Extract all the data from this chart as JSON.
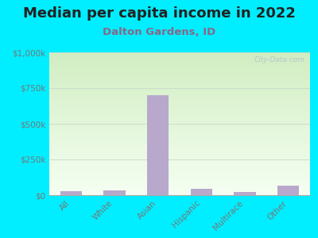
{
  "title": "Median per capita income in 2022",
  "subtitle": "Dalton Gardens, ID",
  "categories": [
    "All",
    "White",
    "Asian",
    "Hispanic",
    "Multirace",
    "Other"
  ],
  "values": [
    30000,
    35000,
    700000,
    45000,
    22000,
    65000
  ],
  "bar_color": "#b8a8cc",
  "background_outer": "#00eeff",
  "background_inner_top": "#d4edc0",
  "background_inner_bottom": "#f0faf0",
  "title_color": "#222222",
  "subtitle_color": "#886688",
  "tick_color": "#777777",
  "watermark": "City-Data.com",
  "ylim": [
    0,
    1000000
  ],
  "yticks": [
    0,
    250000,
    500000,
    750000,
    1000000
  ],
  "ytick_labels": [
    "$0",
    "$250k",
    "$500k",
    "$750k",
    "$1,000k"
  ],
  "title_fontsize": 13,
  "subtitle_fontsize": 9.5,
  "tick_fontsize": 7.5,
  "grid_color": "#ccddcc"
}
